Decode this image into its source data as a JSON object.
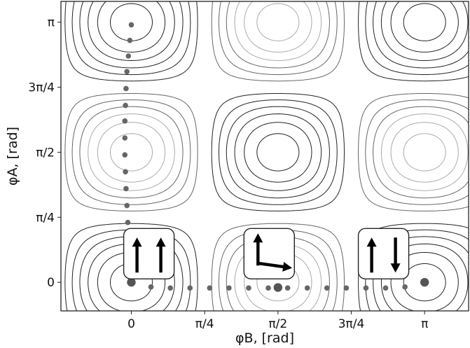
{
  "chart_data": {
    "type": "contour",
    "xlabel": "φB, [rad]",
    "ylabel": "φA, [rad]",
    "xlim": [
      -0.24,
      1.15
    ],
    "ylim": [
      -0.11,
      1.08
    ],
    "x_ticks": [
      {
        "value": 0,
        "label": "0"
      },
      {
        "value": 0.25,
        "label": "π/4"
      },
      {
        "value": 0.5,
        "label": "π/2"
      },
      {
        "value": 0.75,
        "label": "3π/4"
      },
      {
        "value": 1.0,
        "label": "π"
      }
    ],
    "y_ticks": [
      {
        "value": 0,
        "label": "0"
      },
      {
        "value": 0.25,
        "label": "π/4"
      },
      {
        "value": 0.5,
        "label": "π/2"
      },
      {
        "value": 0.75,
        "label": "3π/4"
      },
      {
        "value": 1.0,
        "label": "π"
      }
    ],
    "units": "multiples of π rad",
    "contour_levels": [
      -0.9,
      -0.75,
      -0.6,
      -0.45,
      -0.3,
      -0.15,
      0.15,
      0.3,
      0.45,
      0.6,
      0.75,
      0.9
    ],
    "path_points_vertical": [
      {
        "x": 0.0,
        "y": 0.99
      },
      {
        "x": -0.005,
        "y": 0.93
      },
      {
        "x": -0.01,
        "y": 0.87
      },
      {
        "x": -0.015,
        "y": 0.81
      },
      {
        "x": -0.018,
        "y": 0.745
      },
      {
        "x": -0.02,
        "y": 0.68
      },
      {
        "x": -0.022,
        "y": 0.62
      },
      {
        "x": -0.022,
        "y": 0.555
      },
      {
        "x": -0.022,
        "y": 0.49
      },
      {
        "x": -0.02,
        "y": 0.425
      },
      {
        "x": -0.018,
        "y": 0.36
      },
      {
        "x": -0.015,
        "y": 0.295
      },
      {
        "x": -0.012,
        "y": 0.23
      },
      {
        "x": -0.008,
        "y": 0.165
      },
      {
        "x": -0.004,
        "y": 0.1
      },
      {
        "x": 0.0,
        "y": 0.04
      }
    ],
    "path_points_horizontal": [
      {
        "x": 0.0,
        "y": 0.0
      },
      {
        "x": 0.067,
        "y": -0.018
      },
      {
        "x": 0.133,
        "y": -0.022
      },
      {
        "x": 0.2,
        "y": -0.022
      },
      {
        "x": 0.267,
        "y": -0.022
      },
      {
        "x": 0.333,
        "y": -0.022
      },
      {
        "x": 0.4,
        "y": -0.022
      },
      {
        "x": 0.467,
        "y": -0.022
      },
      {
        "x": 0.533,
        "y": -0.022
      },
      {
        "x": 0.6,
        "y": -0.022
      },
      {
        "x": 0.667,
        "y": -0.022
      },
      {
        "x": 0.733,
        "y": -0.022
      },
      {
        "x": 0.8,
        "y": -0.022
      },
      {
        "x": 0.867,
        "y": -0.022
      },
      {
        "x": 0.933,
        "y": -0.018
      },
      {
        "x": 1.0,
        "y": 0.0
      }
    ],
    "highlight_points": [
      {
        "x": 0.0,
        "y": 0.0
      },
      {
        "x": 0.5,
        "y": -0.02
      },
      {
        "x": 1.0,
        "y": 0.0
      }
    ],
    "spin_insets": [
      {
        "name": "parallel",
        "x": 0.06,
        "y": 0.11,
        "arrows": [
          "up",
          "up"
        ]
      },
      {
        "name": "perpendicular",
        "x": 0.47,
        "y": 0.11,
        "arrows": [
          "up",
          "right"
        ]
      },
      {
        "name": "antiparallel",
        "x": 0.86,
        "y": 0.11,
        "arrows": [
          "up",
          "down"
        ]
      }
    ]
  }
}
